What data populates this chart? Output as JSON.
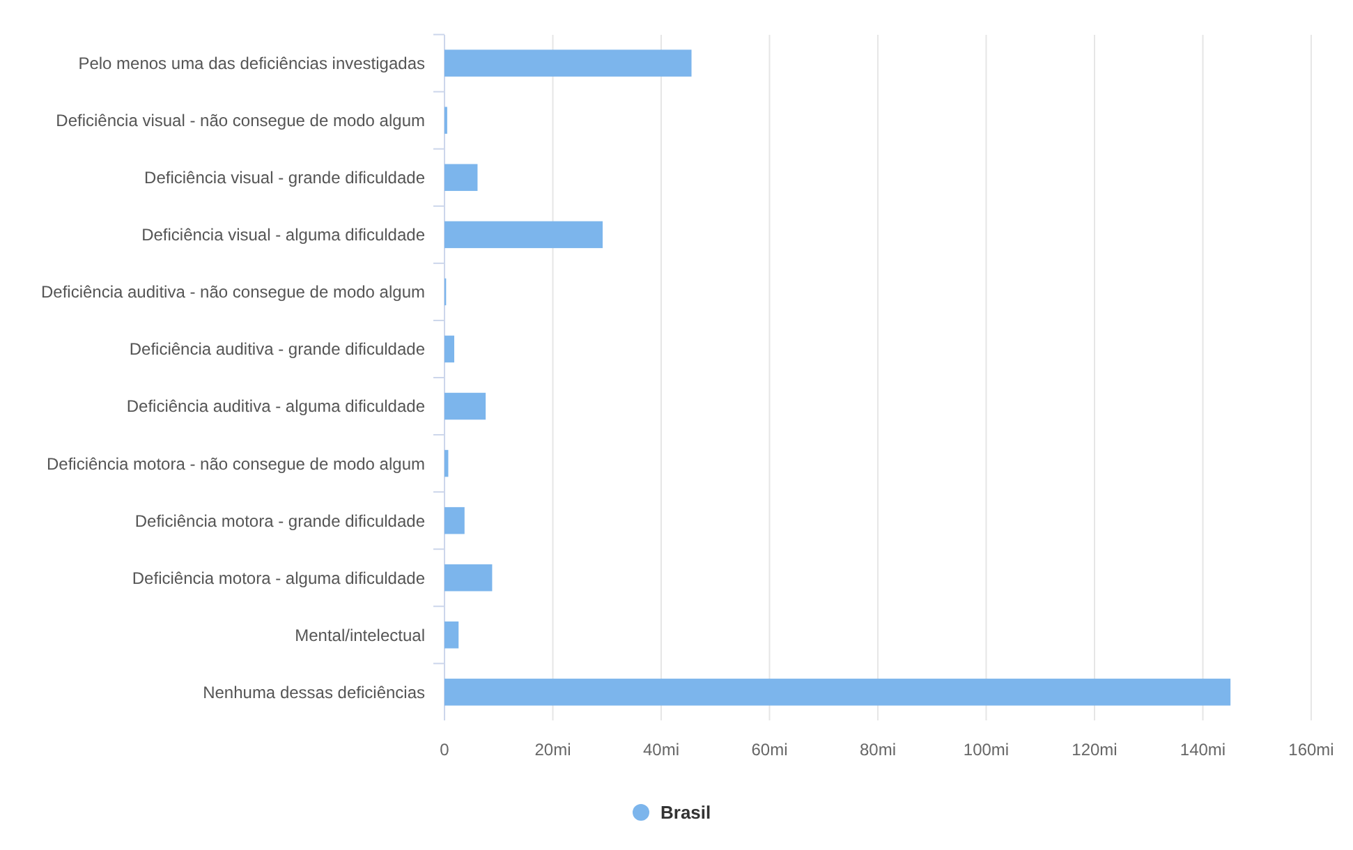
{
  "chart_data": {
    "type": "bar",
    "orientation": "horizontal",
    "categories": [
      "Pelo menos uma das deficiências investigadas",
      "Deficiência visual - não consegue de modo algum",
      "Deficiência visual - grande dificuldade",
      "Deficiência visual - alguma dificuldade",
      "Deficiência auditiva - não consegue de modo algum",
      "Deficiência auditiva - grande dificuldade",
      "Deficiência auditiva - alguma dificuldade",
      "Deficiência motora - não consegue de modo algum",
      "Deficiência motora - grande dificuldade",
      "Deficiência motora - alguma dificuldade",
      "Mental/intelectual",
      "Nenhuma dessas deficiências"
    ],
    "series": [
      {
        "name": "Brasil",
        "color": "#7cb5ec",
        "values": [
          45.6,
          0.5,
          6.1,
          29.2,
          0.3,
          1.8,
          7.6,
          0.7,
          3.7,
          8.8,
          2.6,
          145.1
        ]
      }
    ],
    "xlim": [
      0,
      160
    ],
    "xticks": [
      0,
      {
        "value": 20,
        "label": "20mi"
      },
      {
        "value": 40,
        "label": "40mi"
      },
      {
        "value": 60,
        "label": "60mi"
      },
      {
        "value": 80,
        "label": "80mi"
      },
      {
        "value": 100,
        "label": "100mi"
      },
      {
        "value": 120,
        "label": "120mi"
      },
      {
        "value": 140,
        "label": "140mi"
      },
      {
        "value": 160,
        "label": "160mi"
      }
    ],
    "grid": "x",
    "legend": "bottom",
    "marker": "circle"
  }
}
